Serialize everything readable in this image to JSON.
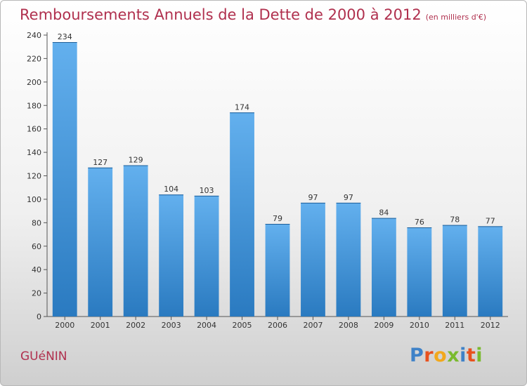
{
  "title": "Remboursements Annuels de la Dette de 2000 à 2012",
  "unit_note": "(en milliers d'€)",
  "town": "GUéNIN",
  "logo": {
    "letters": [
      "P",
      "r",
      "o",
      "x",
      "i",
      "t",
      "i"
    ],
    "colors": [
      "#3f82c8",
      "#e8511e",
      "#f2a81c",
      "#7aba2e",
      "#3f82c8",
      "#e8511e",
      "#7aba2e"
    ]
  },
  "colors": {
    "bar_light": "#63b0ee",
    "bar_dark": "#2a7ac0",
    "axis": "#555555"
  },
  "chart_data": {
    "type": "bar",
    "categories": [
      "2000",
      "2001",
      "2002",
      "2003",
      "2004",
      "2005",
      "2006",
      "2007",
      "2008",
      "2009",
      "2010",
      "2011",
      "2012"
    ],
    "values": [
      234,
      127,
      129,
      104,
      103,
      174,
      79,
      97,
      97,
      84,
      76,
      78,
      77
    ],
    "ylim": [
      0,
      240
    ],
    "yticks": [
      0,
      20,
      40,
      60,
      80,
      100,
      120,
      140,
      160,
      180,
      200,
      220,
      240
    ],
    "grid": false,
    "legend": "none"
  }
}
